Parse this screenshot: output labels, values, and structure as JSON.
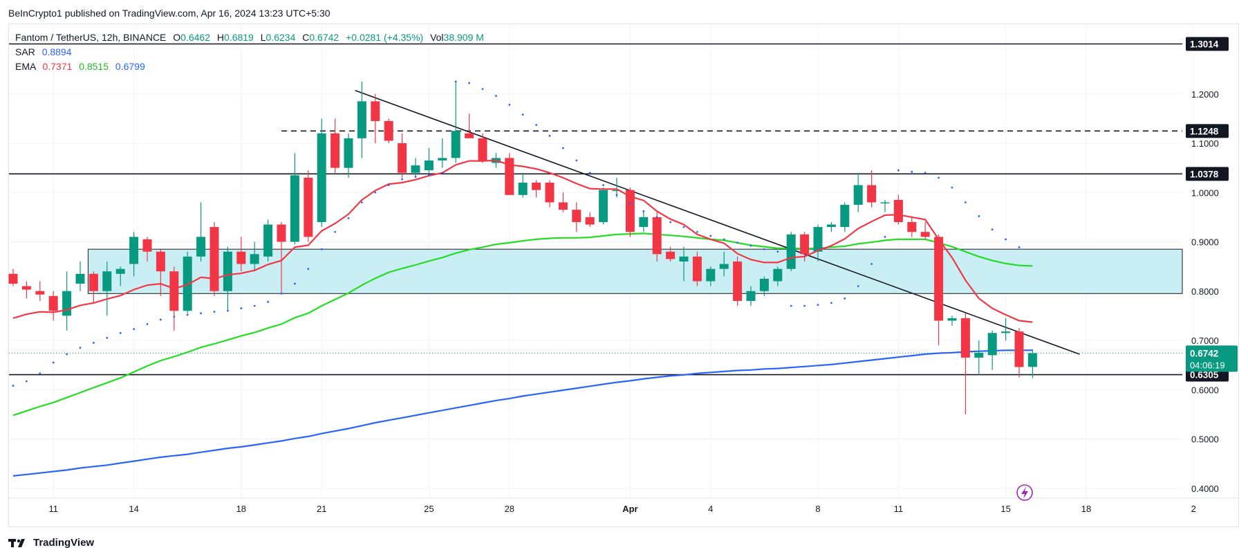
{
  "publisher": "BeInCrypto1 published on TradingView.com, Apr 16, 2024 13:23 UTC+5:30",
  "legend": {
    "symbol": "Fantom / TetherUS, 12h, BINANCE",
    "ohlc": [
      {
        "key": "O",
        "value": "0.6462"
      },
      {
        "key": "H",
        "value": "0.6819"
      },
      {
        "key": "L",
        "value": "0.6234"
      },
      {
        "key": "C",
        "value": "0.6742"
      }
    ],
    "change": "+0.0281 (+4.35%)",
    "vol_key": "Vol",
    "vol_value": "38.909 M",
    "sar_label": "SAR",
    "sar_value": "0.8894",
    "ema_label": "EMA",
    "ema_values": [
      "0.7371",
      "0.8515",
      "0.6799"
    ]
  },
  "colors": {
    "up": "#089981",
    "down": "#f23645",
    "ema_fast": "#f23645",
    "ema_mid": "#22dd22",
    "ema_slow": "#2962ff",
    "sar": "#2962ff",
    "zone": "#c9eef4",
    "text": "#131722",
    "grid": "#f0f3fa"
  },
  "footer": "TradingView",
  "chart_data": {
    "type": "candlestick",
    "ylim": [
      0.38,
      1.34
    ],
    "y_ticks": [
      "0.4000",
      "0.5000",
      "0.6000",
      "0.7000",
      "0.8000",
      "0.9000",
      "1.0000",
      "1.1000",
      "1.2000"
    ],
    "x_ticks": [
      "11",
      "14",
      "18",
      "21",
      "25",
      "28",
      "Apr",
      "4",
      "8",
      "11",
      "15",
      "18",
      "2"
    ],
    "x_tick_bars": [
      3,
      9,
      17,
      23,
      31,
      37,
      46,
      52,
      60,
      66,
      74,
      80,
      88
    ],
    "price_levels": [
      {
        "label": "1.3014",
        "value": 1.3014,
        "style": "solid"
      },
      {
        "label": "1.1248",
        "value": 1.1248,
        "style": "dashed"
      },
      {
        "label": "1.0378",
        "value": 1.0378,
        "style": "solid"
      },
      {
        "label": "0.6305",
        "value": 0.6305,
        "style": "solid"
      }
    ],
    "current_price": {
      "label": "0.6742",
      "value": 0.6742,
      "countdown": "04:06:19"
    },
    "zone": {
      "top": 0.885,
      "bottom": 0.795,
      "from_bar": 6
    },
    "trendline": {
      "from": [
        25.5,
        1.207
      ],
      "to": [
        79.5,
        0.672
      ]
    },
    "candles": [
      {
        "o": 0.835,
        "h": 0.845,
        "l": 0.81,
        "c": 0.815
      },
      {
        "o": 0.81,
        "h": 0.82,
        "l": 0.785,
        "c": 0.803
      },
      {
        "o": 0.8,
        "h": 0.82,
        "l": 0.78,
        "c": 0.793
      },
      {
        "o": 0.79,
        "h": 0.8,
        "l": 0.74,
        "c": 0.76
      },
      {
        "o": 0.75,
        "h": 0.84,
        "l": 0.72,
        "c": 0.8
      },
      {
        "o": 0.815,
        "h": 0.86,
        "l": 0.8,
        "c": 0.835
      },
      {
        "o": 0.835,
        "h": 0.84,
        "l": 0.775,
        "c": 0.8
      },
      {
        "o": 0.8,
        "h": 0.86,
        "l": 0.75,
        "c": 0.84
      },
      {
        "o": 0.835,
        "h": 0.85,
        "l": 0.81,
        "c": 0.845
      },
      {
        "o": 0.855,
        "h": 0.92,
        "l": 0.83,
        "c": 0.91
      },
      {
        "o": 0.905,
        "h": 0.91,
        "l": 0.86,
        "c": 0.88
      },
      {
        "o": 0.88,
        "h": 0.885,
        "l": 0.79,
        "c": 0.84
      },
      {
        "o": 0.84,
        "h": 0.85,
        "l": 0.72,
        "c": 0.76
      },
      {
        "o": 0.76,
        "h": 0.88,
        "l": 0.755,
        "c": 0.87
      },
      {
        "o": 0.87,
        "h": 0.98,
        "l": 0.86,
        "c": 0.91
      },
      {
        "o": 0.93,
        "h": 0.94,
        "l": 0.79,
        "c": 0.8
      },
      {
        "o": 0.8,
        "h": 0.89,
        "l": 0.76,
        "c": 0.88
      },
      {
        "o": 0.88,
        "h": 0.91,
        "l": 0.84,
        "c": 0.855
      },
      {
        "o": 0.855,
        "h": 0.9,
        "l": 0.84,
        "c": 0.875
      },
      {
        "o": 0.87,
        "h": 0.945,
        "l": 0.86,
        "c": 0.935
      },
      {
        "o": 0.935,
        "h": 0.94,
        "l": 0.795,
        "c": 0.9
      },
      {
        "o": 0.9,
        "h": 1.08,
        "l": 0.895,
        "c": 1.035
      },
      {
        "o": 1.03,
        "h": 1.045,
        "l": 0.9,
        "c": 0.91
      },
      {
        "o": 0.94,
        "h": 1.15,
        "l": 0.93,
        "c": 1.12
      },
      {
        "o": 1.12,
        "h": 1.15,
        "l": 1.04,
        "c": 1.05
      },
      {
        "o": 1.05,
        "h": 1.12,
        "l": 1.03,
        "c": 1.11
      },
      {
        "o": 1.11,
        "h": 1.225,
        "l": 1.07,
        "c": 1.185
      },
      {
        "o": 1.185,
        "h": 1.2,
        "l": 1.1,
        "c": 1.145
      },
      {
        "o": 1.145,
        "h": 1.15,
        "l": 1.1,
        "c": 1.105
      },
      {
        "o": 1.1,
        "h": 1.12,
        "l": 1.03,
        "c": 1.04
      },
      {
        "o": 1.04,
        "h": 1.07,
        "l": 1.03,
        "c": 1.055
      },
      {
        "o": 1.045,
        "h": 1.09,
        "l": 1.04,
        "c": 1.065
      },
      {
        "o": 1.065,
        "h": 1.11,
        "l": 1.05,
        "c": 1.07
      },
      {
        "o": 1.07,
        "h": 1.225,
        "l": 1.06,
        "c": 1.125
      },
      {
        "o": 1.12,
        "h": 1.16,
        "l": 1.11,
        "c": 1.11
      },
      {
        "o": 1.11,
        "h": 1.12,
        "l": 1.06,
        "c": 1.065
      },
      {
        "o": 1.06,
        "h": 1.08,
        "l": 1.05,
        "c": 1.07
      },
      {
        "o": 1.07,
        "h": 1.08,
        "l": 0.995,
        "c": 0.995
      },
      {
        "o": 0.995,
        "h": 1.04,
        "l": 0.99,
        "c": 1.02
      },
      {
        "o": 1.02,
        "h": 1.025,
        "l": 0.99,
        "c": 1.005
      },
      {
        "o": 1.02,
        "h": 1.025,
        "l": 0.97,
        "c": 0.98
      },
      {
        "o": 0.98,
        "h": 1.0,
        "l": 0.96,
        "c": 0.965
      },
      {
        "o": 0.965,
        "h": 0.98,
        "l": 0.92,
        "c": 0.94
      },
      {
        "o": 0.95,
        "h": 0.96,
        "l": 0.93,
        "c": 0.935
      },
      {
        "o": 0.94,
        "h": 1.01,
        "l": 0.935,
        "c": 1.005
      },
      {
        "o": 1.005,
        "h": 1.03,
        "l": 0.99,
        "c": 1.005
      },
      {
        "o": 1.005,
        "h": 1.01,
        "l": 0.91,
        "c": 0.92
      },
      {
        "o": 0.93,
        "h": 0.96,
        "l": 0.92,
        "c": 0.95
      },
      {
        "o": 0.95,
        "h": 0.96,
        "l": 0.86,
        "c": 0.875
      },
      {
        "o": 0.88,
        "h": 0.89,
        "l": 0.86,
        "c": 0.865
      },
      {
        "o": 0.86,
        "h": 0.89,
        "l": 0.82,
        "c": 0.87
      },
      {
        "o": 0.87,
        "h": 0.88,
        "l": 0.81,
        "c": 0.82
      },
      {
        "o": 0.82,
        "h": 0.85,
        "l": 0.81,
        "c": 0.845
      },
      {
        "o": 0.845,
        "h": 0.88,
        "l": 0.83,
        "c": 0.855
      },
      {
        "o": 0.86,
        "h": 0.87,
        "l": 0.77,
        "c": 0.78
      },
      {
        "o": 0.78,
        "h": 0.81,
        "l": 0.77,
        "c": 0.8
      },
      {
        "o": 0.8,
        "h": 0.83,
        "l": 0.79,
        "c": 0.825
      },
      {
        "o": 0.82,
        "h": 0.85,
        "l": 0.81,
        "c": 0.845
      },
      {
        "o": 0.845,
        "h": 0.92,
        "l": 0.84,
        "c": 0.915
      },
      {
        "o": 0.915,
        "h": 0.92,
        "l": 0.86,
        "c": 0.875
      },
      {
        "o": 0.88,
        "h": 0.935,
        "l": 0.86,
        "c": 0.93
      },
      {
        "o": 0.93,
        "h": 0.94,
        "l": 0.92,
        "c": 0.935
      },
      {
        "o": 0.93,
        "h": 0.98,
        "l": 0.92,
        "c": 0.975
      },
      {
        "o": 0.975,
        "h": 1.04,
        "l": 0.96,
        "c": 1.015
      },
      {
        "o": 1.015,
        "h": 1.045,
        "l": 0.97,
        "c": 0.98
      },
      {
        "o": 0.98,
        "h": 0.985,
        "l": 0.96,
        "c": 0.98
      },
      {
        "o": 0.985,
        "h": 0.995,
        "l": 0.935,
        "c": 0.94
      },
      {
        "o": 0.94,
        "h": 0.95,
        "l": 0.91,
        "c": 0.92
      },
      {
        "o": 0.92,
        "h": 0.94,
        "l": 0.905,
        "c": 0.91
      },
      {
        "o": 0.91,
        "h": 0.915,
        "l": 0.69,
        "c": 0.74
      },
      {
        "o": 0.74,
        "h": 0.75,
        "l": 0.73,
        "c": 0.745
      },
      {
        "o": 0.745,
        "h": 0.755,
        "l": 0.55,
        "c": 0.665
      },
      {
        "o": 0.665,
        "h": 0.7,
        "l": 0.63,
        "c": 0.675
      },
      {
        "o": 0.67,
        "h": 0.72,
        "l": 0.64,
        "c": 0.715
      },
      {
        "o": 0.715,
        "h": 0.745,
        "l": 0.7,
        "c": 0.718
      },
      {
        "o": 0.718,
        "h": 0.725,
        "l": 0.625,
        "c": 0.646
      },
      {
        "o": 0.6462,
        "h": 0.6819,
        "l": 0.6234,
        "c": 0.6742
      }
    ],
    "ema_fast": [
      0.745,
      0.753,
      0.758,
      0.757,
      0.762,
      0.771,
      0.776,
      0.784,
      0.791,
      0.803,
      0.812,
      0.815,
      0.805,
      0.813,
      0.828,
      0.825,
      0.833,
      0.836,
      0.842,
      0.854,
      0.862,
      0.889,
      0.893,
      0.922,
      0.937,
      0.956,
      0.985,
      1.004,
      1.017,
      1.02,
      1.026,
      1.034,
      1.04,
      1.056,
      1.064,
      1.064,
      1.065,
      1.056,
      1.053,
      1.048,
      1.04,
      1.03,
      1.018,
      1.008,
      1.007,
      1.007,
      0.992,
      0.984,
      0.962,
      0.946,
      0.935,
      0.915,
      0.905,
      0.897,
      0.876,
      0.864,
      0.858,
      0.858,
      0.868,
      0.87,
      0.882,
      0.892,
      0.906,
      0.927,
      0.941,
      0.954,
      0.955,
      0.95,
      0.945,
      0.905,
      0.868,
      0.822,
      0.785,
      0.765,
      0.752,
      0.74,
      0.737
    ],
    "ema_mid": [
      0.548,
      0.557,
      0.566,
      0.574,
      0.584,
      0.594,
      0.604,
      0.614,
      0.624,
      0.636,
      0.648,
      0.659,
      0.667,
      0.676,
      0.686,
      0.693,
      0.701,
      0.709,
      0.716,
      0.725,
      0.733,
      0.746,
      0.755,
      0.77,
      0.783,
      0.796,
      0.812,
      0.826,
      0.838,
      0.846,
      0.853,
      0.861,
      0.868,
      0.877,
      0.884,
      0.889,
      0.895,
      0.898,
      0.902,
      0.905,
      0.907,
      0.908,
      0.908,
      0.909,
      0.912,
      0.915,
      0.916,
      0.917,
      0.915,
      0.913,
      0.911,
      0.908,
      0.905,
      0.903,
      0.898,
      0.893,
      0.89,
      0.887,
      0.887,
      0.886,
      0.887,
      0.889,
      0.891,
      0.896,
      0.899,
      0.903,
      0.905,
      0.905,
      0.905,
      0.898,
      0.89,
      0.88,
      0.87,
      0.862,
      0.856,
      0.852,
      0.851
    ],
    "ema_slow": [
      0.425,
      0.428,
      0.431,
      0.434,
      0.437,
      0.441,
      0.444,
      0.447,
      0.451,
      0.455,
      0.459,
      0.463,
      0.466,
      0.469,
      0.473,
      0.477,
      0.481,
      0.484,
      0.488,
      0.492,
      0.496,
      0.501,
      0.505,
      0.511,
      0.516,
      0.521,
      0.527,
      0.533,
      0.538,
      0.543,
      0.548,
      0.553,
      0.558,
      0.563,
      0.568,
      0.573,
      0.578,
      0.582,
      0.587,
      0.591,
      0.595,
      0.599,
      0.603,
      0.607,
      0.611,
      0.615,
      0.618,
      0.622,
      0.625,
      0.628,
      0.63,
      0.633,
      0.635,
      0.637,
      0.639,
      0.64,
      0.642,
      0.643,
      0.645,
      0.647,
      0.649,
      0.651,
      0.654,
      0.657,
      0.66,
      0.663,
      0.666,
      0.669,
      0.672,
      0.674,
      0.675,
      0.677,
      0.678,
      0.679,
      0.68,
      0.68,
      0.68
    ],
    "sar": [
      [
        0,
        0.608
      ],
      [
        1,
        0.617
      ],
      [
        2,
        0.633
      ],
      [
        3,
        0.655
      ],
      [
        4,
        0.672
      ],
      [
        5,
        0.685
      ],
      [
        6,
        0.695
      ],
      [
        7,
        0.705
      ],
      [
        8,
        0.715
      ],
      [
        9,
        0.723
      ],
      [
        10,
        0.733
      ],
      [
        11,
        0.742
      ],
      [
        12,
        0.748
      ],
      [
        13,
        0.752
      ],
      [
        14,
        0.755
      ],
      [
        15,
        0.758
      ],
      [
        16,
        0.76
      ],
      [
        17,
        0.765
      ],
      [
        18,
        0.77
      ],
      [
        19,
        0.778
      ],
      [
        20,
        0.795
      ],
      [
        21,
        0.815
      ],
      [
        22,
        0.845
      ],
      [
        23,
        0.885
      ],
      [
        24,
        0.92
      ],
      [
        25,
        0.948
      ],
      [
        26,
        0.98
      ],
      [
        27,
        1.0
      ],
      [
        28,
        1.015
      ],
      [
        29,
        1.027
      ],
      [
        30,
        1.032
      ],
      [
        31,
        1.035
      ],
      [
        32,
        1.04
      ],
      [
        33,
        1.225
      ],
      [
        34,
        1.222
      ],
      [
        35,
        1.21
      ],
      [
        36,
        1.196
      ],
      [
        37,
        1.178
      ],
      [
        38,
        1.158
      ],
      [
        39,
        1.137
      ],
      [
        40,
        1.115
      ],
      [
        41,
        1.09
      ],
      [
        42,
        1.065
      ],
      [
        43,
        1.04
      ],
      [
        44,
        1.015
      ],
      [
        45,
        0.995
      ],
      [
        46,
        0.978
      ],
      [
        47,
        0.962
      ],
      [
        48,
        0.95
      ],
      [
        49,
        0.94
      ],
      [
        50,
        0.93
      ],
      [
        51,
        0.92
      ],
      [
        52,
        0.912
      ],
      [
        53,
        0.905
      ],
      [
        54,
        0.898
      ],
      [
        55,
        0.892
      ],
      [
        56,
        0.885
      ],
      [
        57,
        0.88
      ],
      [
        58,
        0.77
      ],
      [
        59,
        0.77
      ],
      [
        60,
        0.772
      ],
      [
        61,
        0.776
      ],
      [
        62,
        0.785
      ],
      [
        63,
        0.81
      ],
      [
        64,
        0.855
      ],
      [
        65,
        0.91
      ],
      [
        66,
        1.045
      ],
      [
        67,
        1.042
      ],
      [
        68,
        1.04
      ],
      [
        69,
        1.03
      ],
      [
        70,
        1.01
      ],
      [
        71,
        0.98
      ],
      [
        72,
        0.952
      ],
      [
        73,
        0.925
      ],
      [
        74,
        0.905
      ],
      [
        75,
        0.889
      ]
    ]
  }
}
